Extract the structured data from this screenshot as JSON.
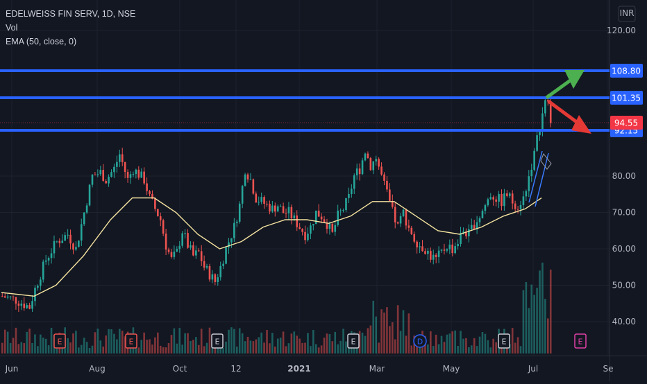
{
  "legend": {
    "title": "EDELWEISS FIN SERV, 1D, NSE",
    "vol_label": "Vol",
    "ema_label": "EMA (50, close, 0)"
  },
  "currency": "INR",
  "chart_data": {
    "type": "candlestick",
    "x_ticks": [
      "Jun",
      "Aug",
      "Oct",
      "12",
      "2021",
      "Mar",
      "May",
      "Jul",
      "Se"
    ],
    "y_ticks": [
      "120.00",
      "80.00",
      "70.00",
      "60.00",
      "50.00",
      "40.00"
    ],
    "ylim": [
      30,
      124
    ],
    "horizontal_levels": [
      {
        "label": "108.80",
        "value": 108.8,
        "color": "#2962ff"
      },
      {
        "label": "101.35",
        "value": 101.35,
        "color": "#2962ff"
      },
      {
        "label": "92.15",
        "value": 92.15,
        "color": "#2962ff"
      }
    ],
    "last_price": {
      "label": "94.55",
      "value": 94.55,
      "color": "#f23645"
    },
    "price_path": [
      [
        0,
        47
      ],
      [
        5,
        46
      ],
      [
        10,
        44
      ],
      [
        12,
        49
      ],
      [
        16,
        57
      ],
      [
        20,
        62
      ],
      [
        24,
        64
      ],
      [
        27,
        60
      ],
      [
        30,
        70
      ],
      [
        33,
        80
      ],
      [
        36,
        81
      ],
      [
        38,
        79
      ],
      [
        41,
        82
      ],
      [
        43,
        86
      ],
      [
        46,
        79
      ],
      [
        48,
        82
      ],
      [
        52,
        79
      ],
      [
        54,
        74
      ],
      [
        56,
        71
      ],
      [
        58,
        68
      ],
      [
        60,
        61
      ],
      [
        62,
        57
      ],
      [
        64,
        59
      ],
      [
        66,
        65
      ],
      [
        68,
        61
      ],
      [
        70,
        58
      ],
      [
        72,
        59
      ],
      [
        74,
        55
      ],
      [
        76,
        53
      ],
      [
        78,
        51
      ],
      [
        80,
        55
      ],
      [
        82,
        60
      ],
      [
        85,
        66
      ],
      [
        87,
        72
      ],
      [
        89,
        82
      ],
      [
        91,
        79
      ],
      [
        93,
        74
      ],
      [
        95,
        73
      ],
      [
        97,
        72
      ],
      [
        99,
        71
      ],
      [
        101,
        72
      ],
      [
        103,
        70
      ],
      [
        105,
        70
      ],
      [
        107,
        68
      ],
      [
        109,
        66
      ],
      [
        111,
        64
      ],
      [
        113,
        66
      ],
      [
        115,
        70
      ],
      [
        117,
        69
      ],
      [
        119,
        67
      ],
      [
        121,
        64
      ],
      [
        123,
        69
      ],
      [
        125,
        71
      ],
      [
        127,
        74
      ],
      [
        129,
        80
      ],
      [
        131,
        82
      ],
      [
        133,
        87
      ],
      [
        135,
        83
      ],
      [
        137,
        85
      ],
      [
        139,
        80
      ],
      [
        141,
        75
      ],
      [
        143,
        70
      ],
      [
        145,
        66
      ],
      [
        147,
        70
      ],
      [
        149,
        66
      ],
      [
        151,
        63
      ],
      [
        153,
        61
      ],
      [
        155,
        60
      ],
      [
        157,
        58
      ],
      [
        159,
        57
      ],
      [
        161,
        59
      ],
      [
        163,
        61
      ],
      [
        165,
        60
      ],
      [
        167,
        62
      ],
      [
        169,
        65
      ],
      [
        171,
        64
      ],
      [
        173,
        67
      ],
      [
        175,
        69
      ],
      [
        177,
        72
      ],
      [
        179,
        75
      ],
      [
        181,
        74
      ],
      [
        183,
        73
      ],
      [
        185,
        75
      ],
      [
        187,
        73
      ],
      [
        189,
        72
      ],
      [
        191,
        74
      ],
      [
        193,
        80
      ],
      [
        195,
        86
      ],
      [
        197,
        94
      ],
      [
        199,
        100
      ],
      [
        201,
        95
      ]
    ],
    "ema": [
      [
        0,
        48
      ],
      [
        12,
        47
      ],
      [
        20,
        50
      ],
      [
        30,
        58
      ],
      [
        40,
        68
      ],
      [
        48,
        74
      ],
      [
        56,
        74
      ],
      [
        64,
        70
      ],
      [
        72,
        64
      ],
      [
        80,
        60
      ],
      [
        88,
        62
      ],
      [
        96,
        66
      ],
      [
        104,
        68
      ],
      [
        112,
        68
      ],
      [
        120,
        67
      ],
      [
        128,
        69
      ],
      [
        136,
        73
      ],
      [
        144,
        73
      ],
      [
        152,
        69
      ],
      [
        160,
        65
      ],
      [
        168,
        64
      ],
      [
        176,
        66
      ],
      [
        184,
        69
      ],
      [
        192,
        71
      ],
      [
        198,
        74
      ]
    ],
    "events": [
      {
        "label": "E",
        "style": "earnings-red",
        "x": 21
      },
      {
        "label": "E",
        "style": "earnings-red",
        "x": 48
      },
      {
        "label": "E",
        "style": "earnings-gray",
        "x": 80
      },
      {
        "label": "E",
        "style": "earnings-gray",
        "x": 130
      },
      {
        "label": "D",
        "style": "dividend-blue",
        "x": 155
      },
      {
        "label": "E",
        "style": "earnings-gray",
        "x": 186
      },
      {
        "label": "E",
        "style": "earnings-pink",
        "x": 215
      }
    ]
  },
  "colors": {
    "background": "#131722",
    "grid": "#1e222d",
    "up": "#26a69a",
    "down": "#ef5350",
    "ema": "#f5e4a0",
    "level": "#2962ff",
    "axis_text": "#b2b5be",
    "arrow_green": "#4caf50",
    "arrow_red": "#e53935",
    "channel": "#3a7bff"
  }
}
